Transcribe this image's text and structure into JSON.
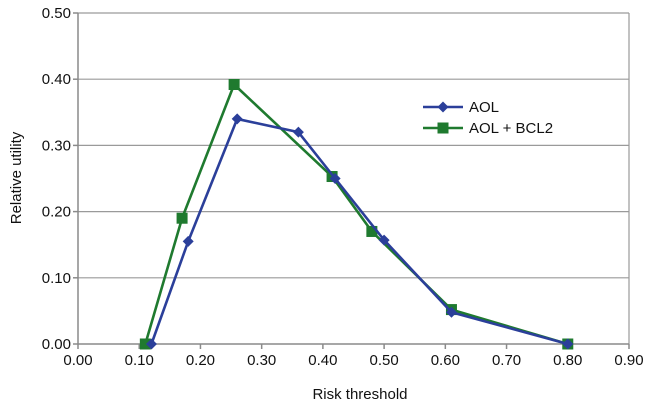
{
  "chart_data": {
    "type": "line",
    "xlabel": "Risk threshold",
    "ylabel": "Relative utility",
    "xlim": [
      0.0,
      0.9
    ],
    "ylim": [
      0.0,
      0.5
    ],
    "xticks": [
      0.0,
      0.1,
      0.2,
      0.3,
      0.4,
      0.5,
      0.6,
      0.7,
      0.8,
      0.9
    ],
    "yticks": [
      0.0,
      0.1,
      0.2,
      0.3,
      0.4,
      0.5
    ],
    "xtick_labels": [
      "0.00",
      "0.10",
      "0.20",
      "0.30",
      "0.40",
      "0.50",
      "0.60",
      "0.70",
      "0.80",
      "0.90"
    ],
    "ytick_labels": [
      "0.00",
      "0.10",
      "0.20",
      "0.30",
      "0.40",
      "0.50"
    ],
    "grid": "horizontal",
    "legend_position": "right",
    "series": [
      {
        "name": "AOL",
        "color": "#2b3f9a",
        "marker": "diamond",
        "points": [
          {
            "x": 0.12,
            "y": 0.0
          },
          {
            "x": 0.18,
            "y": 0.155
          },
          {
            "x": 0.26,
            "y": 0.34
          },
          {
            "x": 0.36,
            "y": 0.32
          },
          {
            "x": 0.42,
            "y": 0.25
          },
          {
            "x": 0.5,
            "y": 0.157
          },
          {
            "x": 0.61,
            "y": 0.048
          },
          {
            "x": 0.8,
            "y": 0.0
          }
        ]
      },
      {
        "name": "AOL + BCL2",
        "color": "#1f7a2f",
        "marker": "square",
        "points": [
          {
            "x": 0.11,
            "y": 0.0
          },
          {
            "x": 0.17,
            "y": 0.19
          },
          {
            "x": 0.255,
            "y": 0.392
          },
          {
            "x": 0.415,
            "y": 0.253
          },
          {
            "x": 0.48,
            "y": 0.17
          },
          {
            "x": 0.61,
            "y": 0.052
          },
          {
            "x": 0.8,
            "y": 0.0
          }
        ]
      }
    ]
  }
}
